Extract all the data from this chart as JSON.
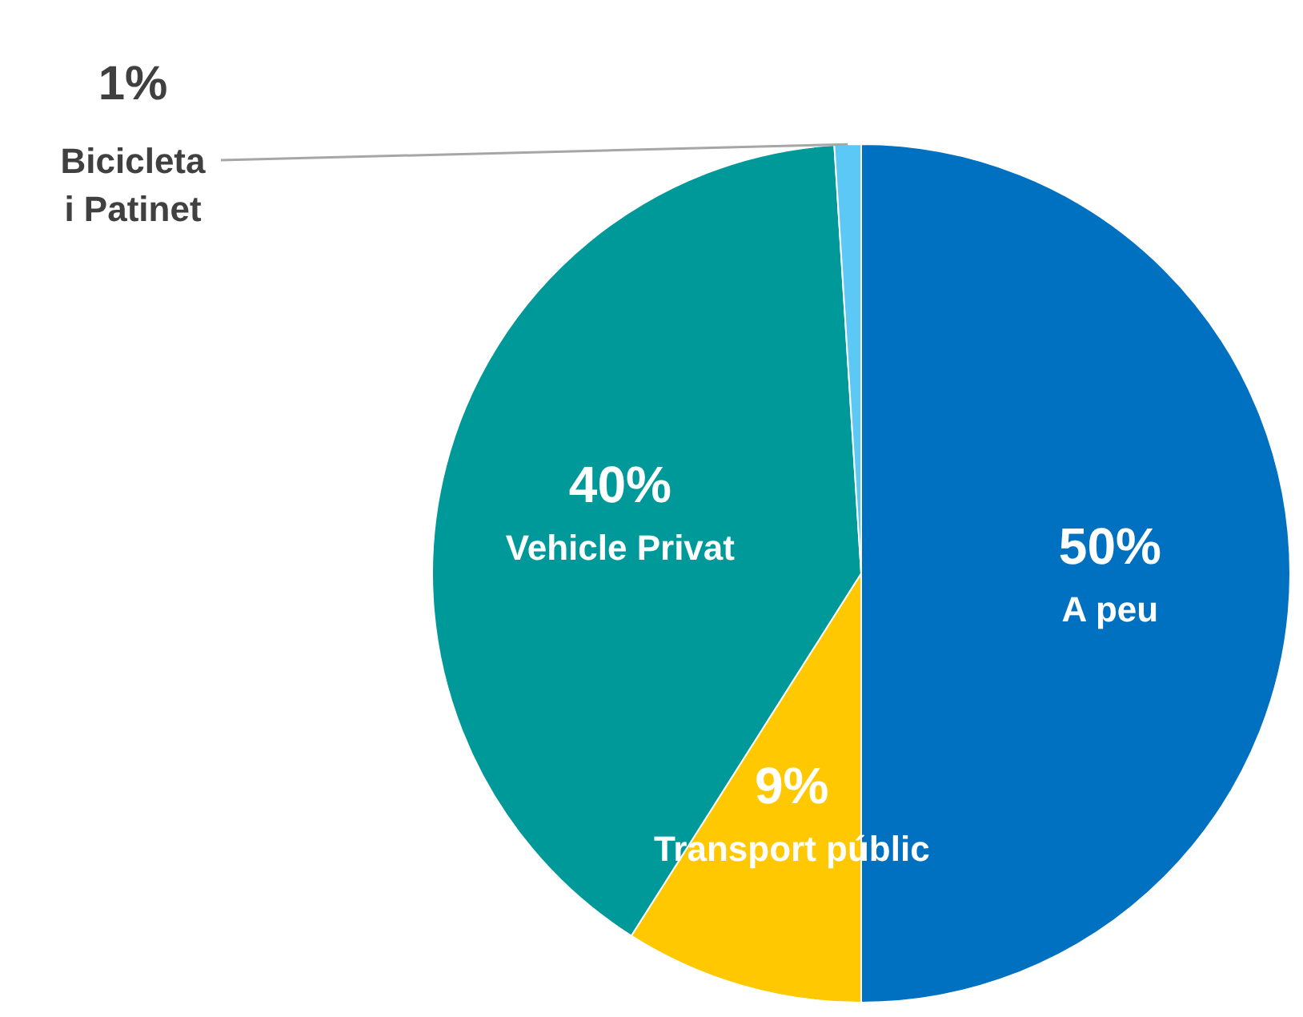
{
  "chart_data": {
    "type": "pie",
    "categories": [
      "A peu",
      "Transport públic",
      "Vehicle Privat",
      "Bicicleta i Patinet"
    ],
    "values": [
      50,
      9,
      40,
      1
    ],
    "colors": [
      "#0070c0",
      "#ffc800",
      "#009999",
      "#5bc8f5"
    ],
    "value_labels": [
      "50%",
      "9%",
      "40%",
      "1%"
    ]
  }
}
